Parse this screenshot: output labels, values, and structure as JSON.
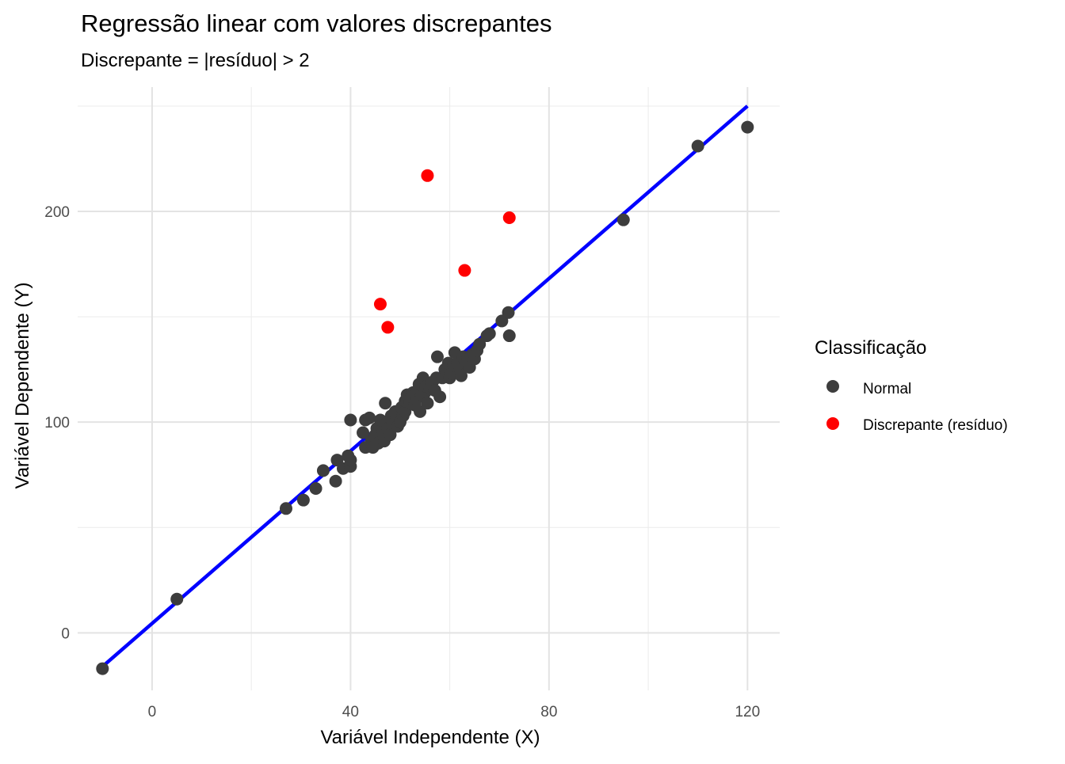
{
  "chart_data": {
    "type": "scatter",
    "title": "Regressão linear com valores discrepantes",
    "subtitle": "Discrepante = |resíduo| > 2",
    "xlabel": "Variável Independente (X)",
    "ylabel": "Variável Dependente (Y)",
    "xlim": [
      -15,
      126.5
    ],
    "ylim": [
      -27.3,
      259
    ],
    "x_ticks": [
      0,
      40,
      80,
      120
    ],
    "x_tick_labels": [
      "0",
      "40",
      "80",
      "120"
    ],
    "x_minor_ticks": [
      20,
      60,
      100
    ],
    "y_ticks": [
      0,
      100,
      200
    ],
    "y_tick_labels": [
      "0",
      "100",
      "200"
    ],
    "y_minor_ticks": [
      50,
      150,
      250
    ],
    "grid": true,
    "legend": {
      "title": "Classificação",
      "position": "right",
      "entries": [
        {
          "label": "Normal",
          "color": "#3d3d3d"
        },
        {
          "label": "Discrepante (resíduo)",
          "color": "#ff0000"
        }
      ]
    },
    "regression_line": {
      "color": "#0000ff",
      "x": [
        -10,
        120
      ],
      "y": [
        -16,
        250
      ]
    },
    "series": [
      {
        "name": "Normal",
        "color": "#3d3d3d",
        "points": [
          [
            -10,
            -17
          ],
          [
            5,
            16
          ],
          [
            27,
            59
          ],
          [
            30.5,
            63
          ],
          [
            33,
            68.5
          ],
          [
            34.5,
            77
          ],
          [
            37,
            72
          ],
          [
            37.3,
            82
          ],
          [
            38.5,
            78
          ],
          [
            39.5,
            84
          ],
          [
            40,
            79
          ],
          [
            40,
            82
          ],
          [
            40,
            101
          ],
          [
            42.5,
            95
          ],
          [
            43,
            101
          ],
          [
            43,
            88
          ],
          [
            43.8,
            102
          ],
          [
            44.2,
            91
          ],
          [
            44.5,
            88
          ],
          [
            45,
            94
          ],
          [
            45.3,
            97
          ],
          [
            45.6,
            90
          ],
          [
            46,
            101
          ],
          [
            46.5,
            95
          ],
          [
            46.8,
            91
          ],
          [
            47,
            99
          ],
          [
            47,
            109
          ],
          [
            47.5,
            97
          ],
          [
            48,
            94
          ],
          [
            48.2,
            103
          ],
          [
            48.5,
            99
          ],
          [
            49,
            105
          ],
          [
            49.3,
            102
          ],
          [
            49.5,
            98
          ],
          [
            50,
            100
          ],
          [
            50.3,
            107
          ],
          [
            50.6,
            103
          ],
          [
            51,
            105
          ],
          [
            51,
            110
          ],
          [
            51.4,
            113
          ],
          [
            52,
            109
          ],
          [
            52.3,
            112
          ],
          [
            52.6,
            114
          ],
          [
            53,
            108
          ],
          [
            53.2,
            111
          ],
          [
            53.5,
            115
          ],
          [
            53.8,
            118
          ],
          [
            54,
            105
          ],
          [
            54.3,
            113
          ],
          [
            54.6,
            121
          ],
          [
            55,
            114
          ],
          [
            55.2,
            117
          ],
          [
            55.5,
            109
          ],
          [
            56,
            116
          ],
          [
            56.5,
            119
          ],
          [
            57,
            115
          ],
          [
            57.3,
            121
          ],
          [
            57.5,
            131
          ],
          [
            58,
            112
          ],
          [
            58.5,
            121
          ],
          [
            59,
            125
          ],
          [
            59.3,
            124
          ],
          [
            59.7,
            128
          ],
          [
            60,
            121
          ],
          [
            60.3,
            123
          ],
          [
            60.7,
            127
          ],
          [
            61,
            133
          ],
          [
            61.5,
            128
          ],
          [
            62,
            126
          ],
          [
            62.3,
            122
          ],
          [
            62.7,
            131
          ],
          [
            63.2,
            128
          ],
          [
            63.6,
            130
          ],
          [
            64,
            126
          ],
          [
            64.5,
            132
          ],
          [
            65,
            130
          ],
          [
            65.5,
            134
          ],
          [
            66,
            137
          ],
          [
            67.5,
            141
          ],
          [
            68,
            142
          ],
          [
            70.5,
            148
          ],
          [
            71.8,
            152
          ],
          [
            72,
            141
          ],
          [
            95,
            196
          ],
          [
            110,
            231
          ],
          [
            120,
            240
          ]
        ]
      },
      {
        "name": "Discrepante (resíduo)",
        "color": "#ff0000",
        "points": [
          [
            46,
            156
          ],
          [
            47.5,
            145
          ],
          [
            55.5,
            217
          ],
          [
            63,
            172
          ],
          [
            72,
            197
          ]
        ]
      }
    ]
  }
}
